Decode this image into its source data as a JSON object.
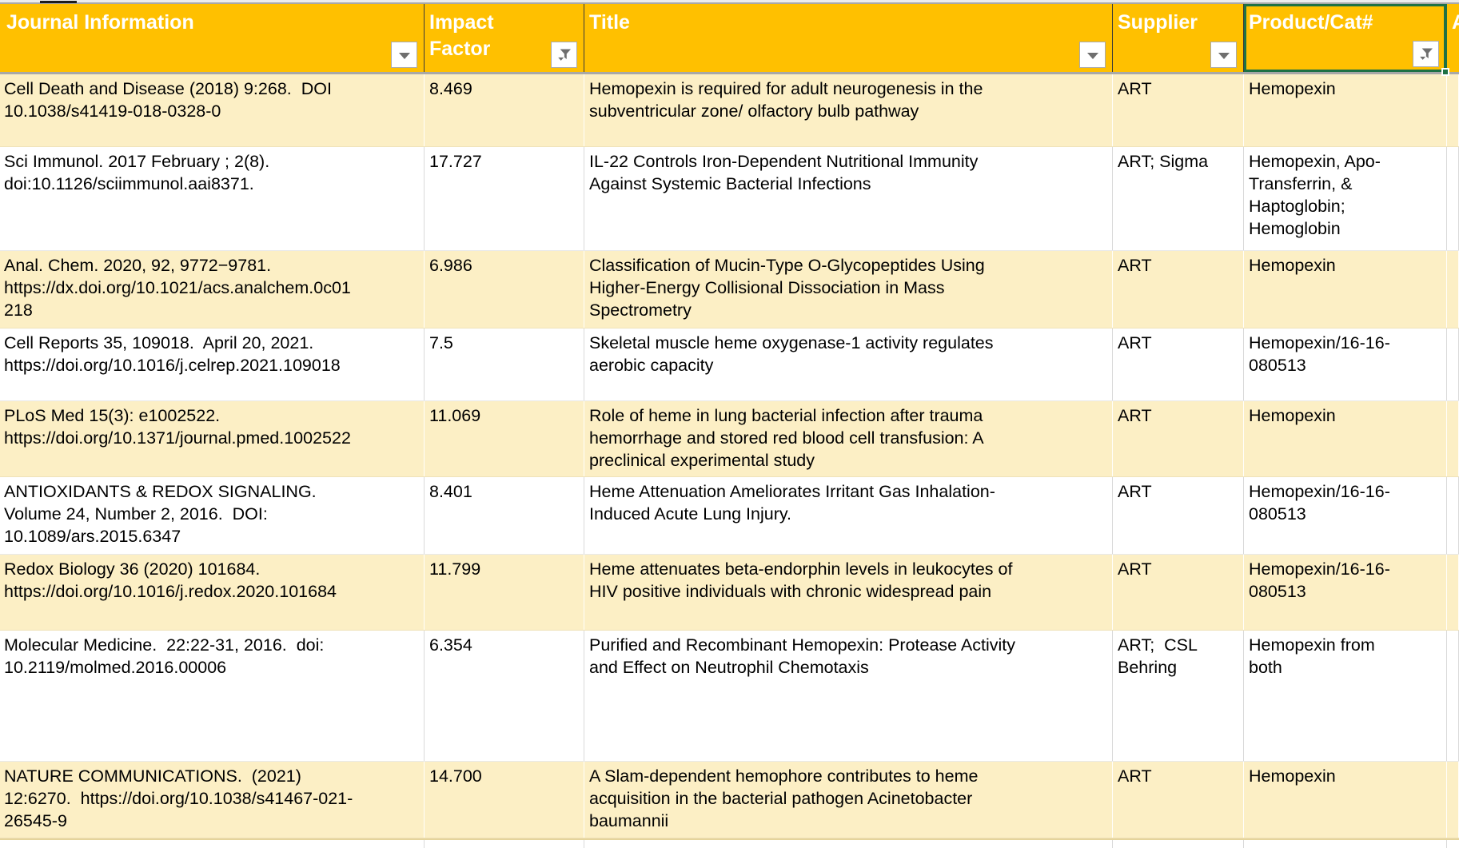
{
  "app": {
    "kind": "spreadsheet-table-view"
  },
  "colors": {
    "header_bg": "#FFC000",
    "header_text": "#FFFFFF",
    "band_row_bg": "#FCEFC5",
    "plain_row_bg": "#FFFFFF",
    "selection_border": "#1E7145",
    "gridline": "#D9D9D9",
    "body_text": "#000000",
    "filter_button_border": "#ABABAB",
    "filter_glyph": "#6F6F6F"
  },
  "icons": {
    "arrow": "chevron-down-icon",
    "funnel": "filter-applied-funnel-icon"
  },
  "table": {
    "columns": [
      {
        "id": "journal",
        "label": "Journal Information",
        "filter": "arrow",
        "selected": false
      },
      {
        "id": "impact",
        "label": "Impact\nFactor",
        "filter": "funnel",
        "selected": false
      },
      {
        "id": "title",
        "label": "Title",
        "filter": "arrow",
        "selected": false
      },
      {
        "id": "supplier",
        "label": "Supplier",
        "filter": "arrow",
        "selected": false
      },
      {
        "id": "product",
        "label": "Product/Cat#",
        "filter": "funnel",
        "selected": true
      },
      {
        "id": "next",
        "label": "A",
        "filter": null,
        "selected": false
      }
    ],
    "rows": [
      {
        "journal": "Cell Death and Disease (2018) 9:268.  DOI\n10.1038/s41419-018-0328-0",
        "impact": "8.469",
        "title": "Hemopexin is required for adult neurogenesis in the\nsubventricular zone/ olfactory bulb pathway",
        "supplier": "ART",
        "product": "Hemopexin"
      },
      {
        "journal": "Sci Immunol. 2017 February ; 2(8).\ndoi:10.1126/sciimmunol.aai8371.",
        "impact": "17.727",
        "title": "IL-22 Controls Iron-Dependent Nutritional Immunity\nAgainst Systemic Bacterial Infections",
        "supplier": "ART; Sigma",
        "product": "Hemopexin, Apo-\nTransferrin, &\nHaptoglobin;\nHemoglobin"
      },
      {
        "journal": "Anal. Chem. 2020, 92, 9772−9781.\nhttps://dx.doi.org/10.1021/acs.analchem.0c01\n218",
        "impact": "6.986",
        "title": "Classification of Mucin-Type O-Glycopeptides Using\nHigher-Energy Collisional Dissociation in Mass\nSpectrometry",
        "supplier": "ART",
        "product": "Hemopexin"
      },
      {
        "journal": "Cell Reports 35, 109018.  April 20, 2021.\nhttps://doi.org/10.1016/j.celrep.2021.109018",
        "impact": "7.5",
        "title": "Skeletal muscle heme oxygenase-1 activity regulates\naerobic capacity",
        "supplier": "ART",
        "product": "Hemopexin/16-16-\n080513"
      },
      {
        "journal": "PLoS Med 15(3): e1002522.\nhttps://doi.org/10.1371/journal.pmed.1002522",
        "impact": "11.069",
        "title": "Role of heme in lung bacterial infection after trauma\nhemorrhage and stored red blood cell transfusion: A\npreclinical experimental study",
        "supplier": "ART",
        "product": "Hemopexin"
      },
      {
        "journal": "ANTIOXIDANTS & REDOX SIGNALING.\nVolume 24, Number 2, 2016.  DOI:\n10.1089/ars.2015.6347",
        "impact": "8.401",
        "title": "Heme Attenuation Ameliorates Irritant Gas Inhalation-\nInduced Acute Lung Injury.",
        "supplier": "ART",
        "product": "Hemopexin/16-16-\n080513"
      },
      {
        "journal": "Redox Biology 36 (2020) 101684.\nhttps://doi.org/10.1016/j.redox.2020.101684",
        "impact": "11.799",
        "title": "Heme attenuates beta-endorphin levels in leukocytes of\nHIV positive individuals with chronic widespread pain",
        "supplier": "ART",
        "product": "Hemopexin/16-16-\n080513"
      },
      {
        "journal": "Molecular Medicine.  22:22-31, 2016.  doi:\n10.2119/molmed.2016.00006",
        "impact": "6.354",
        "title": "Purified and Recombinant Hemopexin: Protease Activity\nand Effect on Neutrophil Chemotaxis",
        "supplier": "ART;  CSL\nBehring",
        "product": "Hemopexin from\nboth"
      },
      {
        "journal": "NATURE COMMUNICATIONS.  (2021)\n12:6270.  https://doi.org/10.1038/s41467-021-\n26545-9",
        "impact": "14.700",
        "title": "A Slam-dependent hemophore contributes to heme\nacquisition in the bacterial pathogen Acinetobacter\nbaumannii",
        "supplier": "ART",
        "product": "Hemopexin"
      }
    ]
  }
}
